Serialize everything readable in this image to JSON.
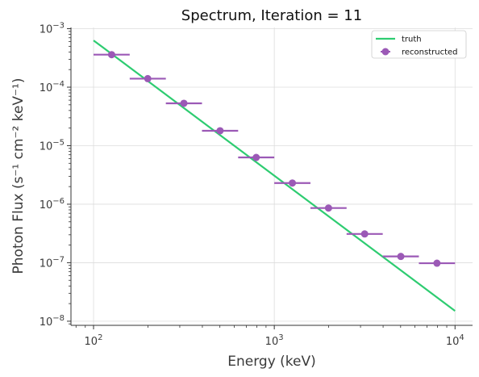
{
  "chart_data": {
    "type": "scatter",
    "title": "Spectrum, Iteration = 11",
    "xlabel": "Energy (keV)",
    "ylabel": "Photon Flux (s⁻¹ cm⁻² keV⁻¹)",
    "xscale": "log",
    "yscale": "log",
    "xlim": [
      75,
      12500
    ],
    "ylim": [
      8.5e-09,
      0.00105
    ],
    "x_ticks": [
      {
        "value": 100,
        "base": "10",
        "exp": "2"
      },
      {
        "value": 1000,
        "base": "10",
        "exp": "3"
      },
      {
        "value": 10000,
        "base": "10",
        "exp": "4"
      }
    ],
    "y_ticks": [
      {
        "value": 1e-08,
        "base": "10",
        "exp": "−8"
      },
      {
        "value": 1e-07,
        "base": "10",
        "exp": "−7"
      },
      {
        "value": 1e-06,
        "base": "10",
        "exp": "−6"
      },
      {
        "value": 1e-05,
        "base": "10",
        "exp": "−5"
      },
      {
        "value": 0.0001,
        "base": "10",
        "exp": "−4"
      },
      {
        "value": 0.001,
        "base": "10",
        "exp": "−3"
      }
    ],
    "grid": true,
    "legend_position": "top-right",
    "series": [
      {
        "name": "truth",
        "kind": "line",
        "color": "#2ecc71",
        "x": [
          100,
          10000
        ],
        "y": [
          0.00063,
          1.5e-08
        ]
      },
      {
        "name": "reconstructed",
        "kind": "errorbar",
        "color": "#9b59b6",
        "points": [
          {
            "x": 125.9,
            "y": 0.00036,
            "xmin": 100,
            "xmax": 158.5
          },
          {
            "x": 199.5,
            "y": 0.00014,
            "xmin": 158.5,
            "xmax": 251.2
          },
          {
            "x": 316.2,
            "y": 5.3e-05,
            "xmin": 251.2,
            "xmax": 398.1
          },
          {
            "x": 501.2,
            "y": 1.8e-05,
            "xmin": 398.1,
            "xmax": 631.0
          },
          {
            "x": 794.3,
            "y": 6.3e-06,
            "xmin": 631.0,
            "xmax": 1000
          },
          {
            "x": 1258.9,
            "y": 2.3e-06,
            "xmin": 1000,
            "xmax": 1584.9
          },
          {
            "x": 1995.3,
            "y": 8.6e-07,
            "xmin": 1584.9,
            "xmax": 2511.9
          },
          {
            "x": 3162.3,
            "y": 3.1e-07,
            "xmin": 2511.9,
            "xmax": 3981.1
          },
          {
            "x": 5011.9,
            "y": 1.28e-07,
            "xmin": 3981.1,
            "xmax": 6309.6
          },
          {
            "x": 7943.3,
            "y": 9.8e-08,
            "xmin": 6309.6,
            "xmax": 10000
          }
        ]
      }
    ]
  }
}
